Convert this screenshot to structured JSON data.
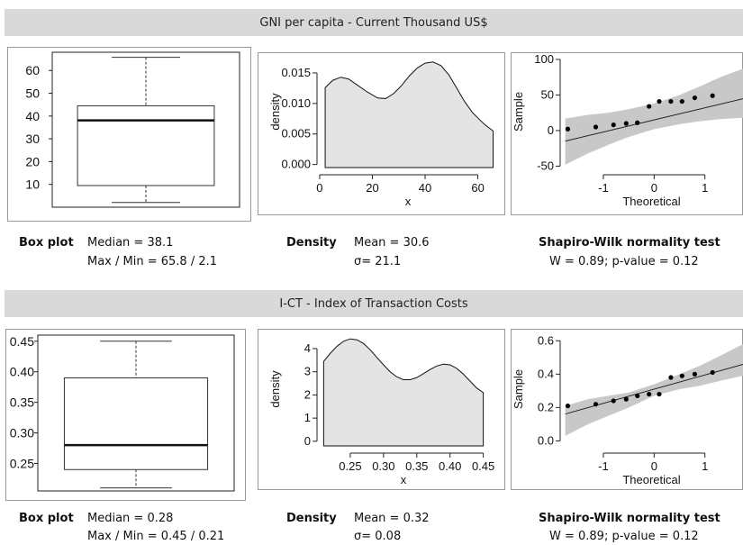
{
  "sections": [
    {
      "title": "GNI per capita - Current Thousand US$",
      "box": {
        "label": "Box plot",
        "line1": "Median =  38.1",
        "line2": "Max / Min = 65.8 / 2.1"
      },
      "density": {
        "label": "Density",
        "line1": "Mean =  30.6",
        "line2": "σ= 21.1"
      },
      "normality": {
        "label": "Shapiro-Wilk normality test",
        "line1": "W = 0.89; p-value = 0.12"
      }
    },
    {
      "title": "I-CT - Index of Transaction Costs",
      "box": {
        "label": "Box plot",
        "line1": "Median = 0.28",
        "line2": "Max / Min = 0.45 / 0.21"
      },
      "density": {
        "label": "Density",
        "line1": "Mean =  0.32",
        "line2": "σ=  0.08"
      },
      "normality": {
        "label": "Shapiro-Wilk normality test",
        "line1": "W = 0.89;   p-value = 0.12"
      }
    }
  ],
  "chart_data": [
    {
      "type": "box",
      "ylim": [
        0,
        68
      ],
      "yticks": [
        "10",
        "20",
        "30",
        "40",
        "50",
        "60"
      ],
      "ytick_values": [
        10,
        20,
        30,
        40,
        50,
        60
      ],
      "min": 2.1,
      "q1": 9.5,
      "median": 38.1,
      "q3": 44.5,
      "max": 65.8
    },
    {
      "type": "area",
      "xlabel": "x",
      "ylabel": "density",
      "xlim": [
        -1,
        68
      ],
      "ylim": [
        -0.0005,
        0.0178
      ],
      "xticks": [
        "0",
        "20",
        "40",
        "60"
      ],
      "xtick_values": [
        0,
        20,
        40,
        60
      ],
      "yticks": [
        "0.000",
        "0.005",
        "0.010",
        "0.015"
      ],
      "ytick_values": [
        0,
        0.005,
        0.01,
        0.015
      ],
      "x": [
        2.1,
        5,
        8,
        11,
        14,
        18,
        22,
        25,
        28,
        31,
        34,
        37,
        40,
        43,
        46,
        49,
        52,
        55,
        58,
        61,
        63,
        65.8
      ],
      "y": [
        0.0126,
        0.0138,
        0.0143,
        0.014,
        0.0131,
        0.0119,
        0.0109,
        0.0108,
        0.0116,
        0.0129,
        0.0145,
        0.0158,
        0.0166,
        0.0168,
        0.0162,
        0.0147,
        0.0125,
        0.0103,
        0.0085,
        0.0072,
        0.0064,
        0.0055
      ]
    },
    {
      "type": "scatter",
      "xlabel": "Theoretical",
      "ylabel": "Sample",
      "xlim": [
        -1.85,
        1.75
      ],
      "ylim": [
        -52,
        105
      ],
      "xticks": [
        "-1",
        "0",
        "1"
      ],
      "xtick_values": [
        -1,
        0,
        1
      ],
      "yticks": [
        "-50",
        "0",
        "50",
        "100"
      ],
      "ytick_values": [
        -50,
        0,
        50,
        100
      ],
      "x": [
        -1.7,
        -1.15,
        -0.8,
        -0.55,
        -0.33,
        -0.1,
        0.1,
        0.33,
        0.55,
        0.8,
        1.15
      ],
      "y": [
        2.1,
        5,
        8,
        10,
        11,
        34,
        41,
        41,
        41,
        46,
        49
      ],
      "line": {
        "intercept": 15,
        "slope": 17
      },
      "band_upper": [
        [
          -1.75,
          17
        ],
        [
          -1.3,
          22
        ],
        [
          -0.9,
          25
        ],
        [
          -0.5,
          30
        ],
        [
          0,
          38
        ],
        [
          0.5,
          50
        ],
        [
          0.9,
          62
        ],
        [
          1.3,
          75
        ],
        [
          1.75,
          87
        ]
      ],
      "band_lower": [
        [
          -1.75,
          -48
        ],
        [
          -1.3,
          -32
        ],
        [
          -0.9,
          -20
        ],
        [
          -0.5,
          -9
        ],
        [
          0,
          2
        ],
        [
          0.5,
          9
        ],
        [
          0.9,
          13
        ],
        [
          1.3,
          16
        ],
        [
          1.75,
          18
        ]
      ]
    },
    {
      "type": "box",
      "ylim": [
        0.205,
        0.46
      ],
      "yticks": [
        "0.25",
        "0.30",
        "0.35",
        "0.40",
        "0.45"
      ],
      "ytick_values": [
        0.25,
        0.3,
        0.35,
        0.4,
        0.45
      ],
      "min": 0.21,
      "q1": 0.24,
      "median": 0.28,
      "q3": 0.39,
      "max": 0.45
    },
    {
      "type": "area",
      "xlabel": "x",
      "ylabel": "density",
      "xlim": [
        0.2,
        0.46
      ],
      "ylim": [
        -0.2,
        4.7
      ],
      "xticks": [
        "0.25",
        "0.30",
        "0.35",
        "0.40",
        "0.45"
      ],
      "xtick_values": [
        0.25,
        0.3,
        0.35,
        0.4,
        0.45
      ],
      "yticks": [
        "0",
        "1",
        "2",
        "3",
        "4"
      ],
      "ytick_values": [
        0,
        1,
        2,
        3,
        4
      ],
      "x": [
        0.21,
        0.22,
        0.23,
        0.24,
        0.25,
        0.26,
        0.27,
        0.28,
        0.29,
        0.3,
        0.31,
        0.32,
        0.33,
        0.34,
        0.35,
        0.36,
        0.37,
        0.38,
        0.39,
        0.4,
        0.41,
        0.42,
        0.43,
        0.44,
        0.45
      ],
      "y": [
        3.45,
        3.8,
        4.1,
        4.32,
        4.42,
        4.38,
        4.22,
        3.95,
        3.62,
        3.3,
        3.0,
        2.78,
        2.66,
        2.66,
        2.75,
        2.92,
        3.1,
        3.25,
        3.33,
        3.3,
        3.15,
        2.9,
        2.6,
        2.3,
        2.1
      ]
    },
    {
      "type": "scatter",
      "xlabel": "Theoretical",
      "ylabel": "Sample",
      "xlim": [
        -1.85,
        1.75
      ],
      "ylim": [
        -0.03,
        0.65
      ],
      "xticks": [
        "-1",
        "0",
        "1"
      ],
      "xtick_values": [
        -1,
        0,
        1
      ],
      "yticks": [
        "0.0",
        "0.2",
        "0.4",
        "0.6"
      ],
      "ytick_values": [
        0.0,
        0.2,
        0.4,
        0.6
      ],
      "x": [
        -1.7,
        -1.15,
        -0.8,
        -0.55,
        -0.33,
        -0.1,
        0.1,
        0.33,
        0.55,
        0.8,
        1.15
      ],
      "y": [
        0.21,
        0.22,
        0.24,
        0.25,
        0.27,
        0.28,
        0.28,
        0.38,
        0.39,
        0.4,
        0.41
      ],
      "line": {
        "intercept": 0.31,
        "slope": 0.085
      },
      "band_upper": [
        [
          -1.75,
          0.21
        ],
        [
          -1.3,
          0.25
        ],
        [
          -0.9,
          0.27
        ],
        [
          -0.5,
          0.29
        ],
        [
          0,
          0.34
        ],
        [
          0.5,
          0.4
        ],
        [
          0.9,
          0.45
        ],
        [
          1.3,
          0.51
        ],
        [
          1.75,
          0.58
        ]
      ],
      "band_lower": [
        [
          -1.75,
          0.03
        ],
        [
          -1.3,
          0.1
        ],
        [
          -0.9,
          0.15
        ],
        [
          -0.5,
          0.2
        ],
        [
          0,
          0.27
        ],
        [
          0.5,
          0.31
        ],
        [
          0.9,
          0.33
        ],
        [
          1.3,
          0.36
        ],
        [
          1.75,
          0.39
        ]
      ]
    }
  ]
}
